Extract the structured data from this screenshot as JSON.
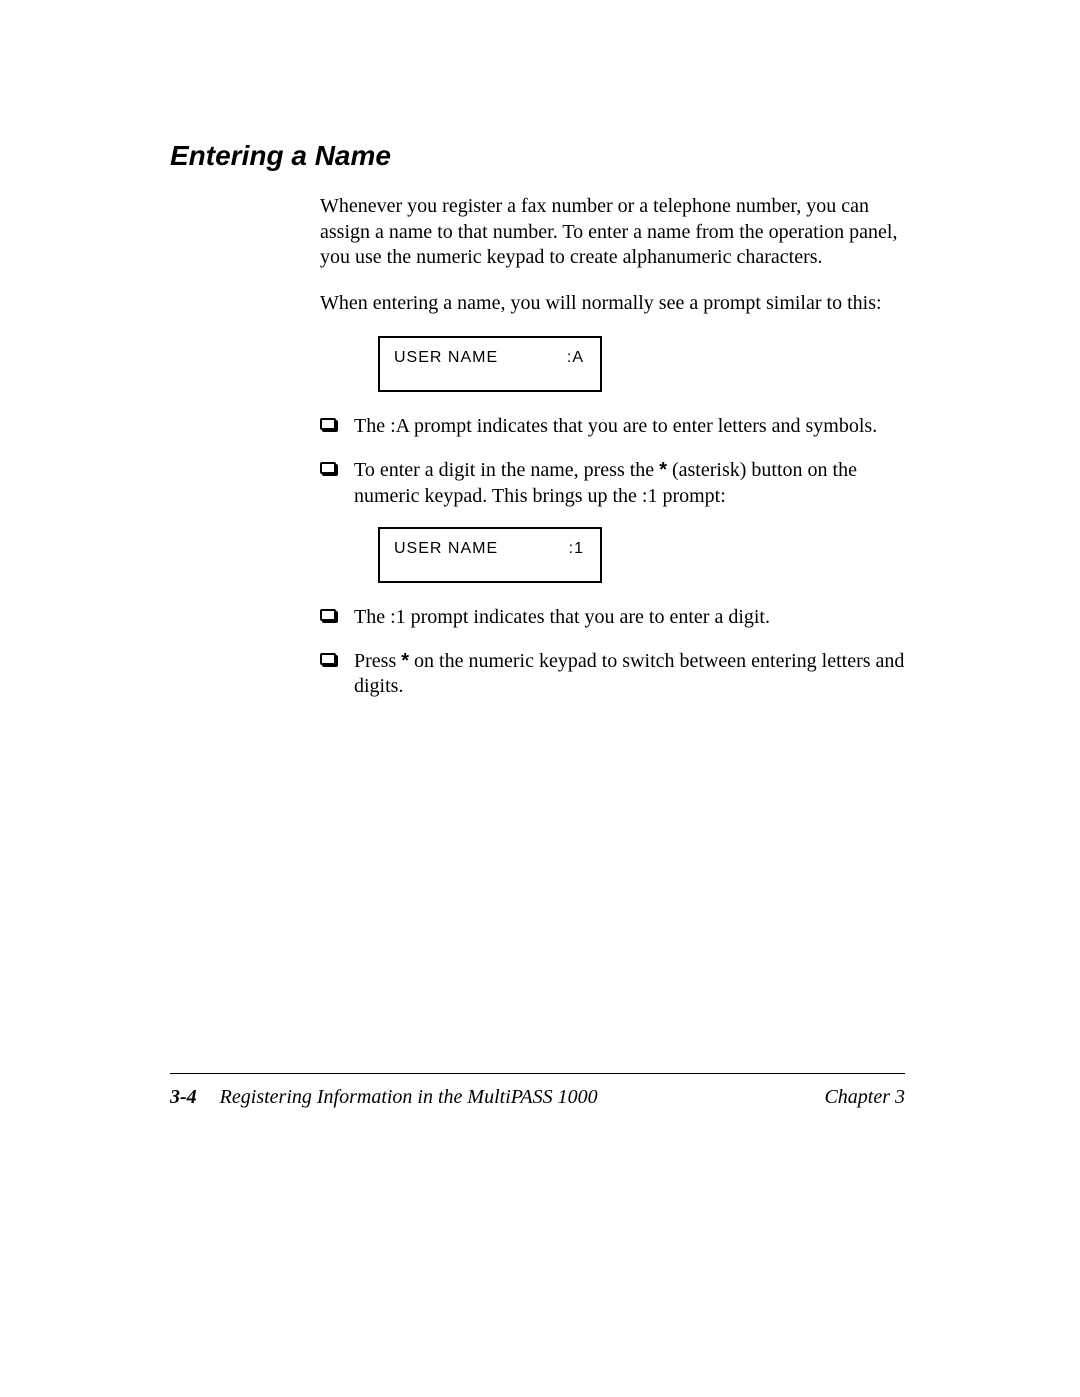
{
  "colors": {
    "background": "#ffffff",
    "text": "#000000",
    "rule": "#000000",
    "box_border": "#000000"
  },
  "typography": {
    "heading_font": "Arial",
    "heading_size_pt": 21,
    "heading_weight": "bold",
    "heading_style": "italic",
    "body_font": "Palatino",
    "body_size_pt": 15,
    "display_font": "Arial",
    "display_size_pt": 12,
    "footer_size_pt": 15,
    "footer_style": "italic"
  },
  "heading": "Entering a Name",
  "paragraphs": {
    "intro": "Whenever you register a fax number or a telephone number, you can assign a name to that number. To enter a name from the operation panel, you use the numeric keypad to create alphanumeric characters.",
    "prompt_lead": "When entering a name, you will normally see a prompt similar to this:"
  },
  "display1": {
    "label": "USER NAME",
    "value": ":A"
  },
  "display2": {
    "label": "USER NAME",
    "value": ":1"
  },
  "bullets1": [
    "The :A prompt indicates that you are to enter letters and symbols.",
    "To enter a digit in the name, press the * (asterisk) button on the numeric keypad. This brings up the :1 prompt:"
  ],
  "bullets2": [
    "The :1 prompt indicates that you are to enter a digit.",
    "Press * on the numeric keypad to switch between entering letters and digits."
  ],
  "footer": {
    "page_number": "3-4",
    "doc_title": "Registering Information in the MultiPASS 1000",
    "chapter": "Chapter 3"
  }
}
